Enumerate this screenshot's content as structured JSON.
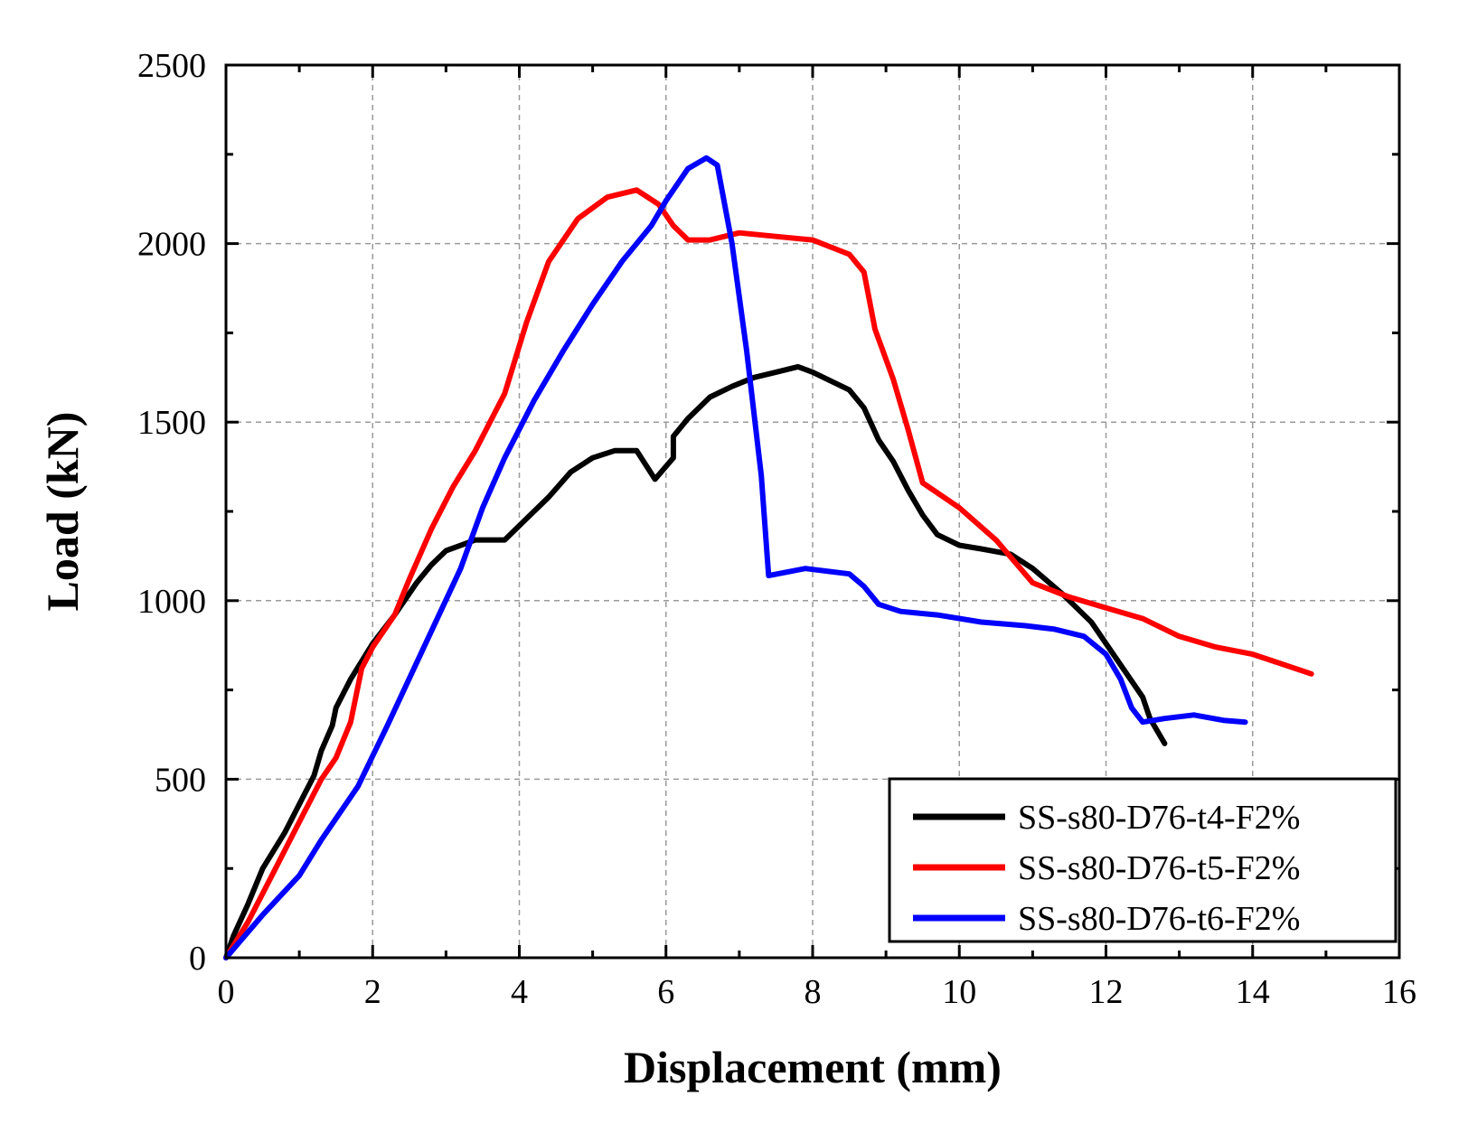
{
  "chart_data": {
    "type": "line",
    "title": "",
    "xlabel": "Displacement (mm)",
    "ylabel": "Load (kN)",
    "xlim": [
      0,
      16
    ],
    "ylim": [
      0,
      2500
    ],
    "xticks": [
      0,
      2,
      4,
      6,
      8,
      10,
      12,
      14,
      16
    ],
    "yticks": [
      0,
      500,
      1000,
      1500,
      2000,
      2500
    ],
    "grid": true,
    "legend_position": "bottom-right",
    "series": [
      {
        "name": "SS-s80-D76-t4-F2%",
        "color": "#000000",
        "points": [
          [
            0,
            0
          ],
          [
            0.1,
            60
          ],
          [
            0.3,
            150
          ],
          [
            0.5,
            250
          ],
          [
            0.8,
            350
          ],
          [
            1.0,
            430
          ],
          [
            1.2,
            510
          ],
          [
            1.3,
            580
          ],
          [
            1.45,
            650
          ],
          [
            1.5,
            700
          ],
          [
            1.7,
            780
          ],
          [
            2.0,
            880
          ],
          [
            2.3,
            960
          ],
          [
            2.6,
            1050
          ],
          [
            2.8,
            1100
          ],
          [
            3.0,
            1140
          ],
          [
            3.4,
            1170
          ],
          [
            3.8,
            1170
          ],
          [
            4.1,
            1230
          ],
          [
            4.4,
            1290
          ],
          [
            4.7,
            1360
          ],
          [
            5.0,
            1400
          ],
          [
            5.3,
            1420
          ],
          [
            5.6,
            1420
          ],
          [
            5.85,
            1340
          ],
          [
            6.1,
            1400
          ],
          [
            6.1,
            1460
          ],
          [
            6.3,
            1510
          ],
          [
            6.6,
            1570
          ],
          [
            6.9,
            1600
          ],
          [
            7.2,
            1625
          ],
          [
            7.5,
            1640
          ],
          [
            7.8,
            1655
          ],
          [
            8.0,
            1640
          ],
          [
            8.3,
            1610
          ],
          [
            8.5,
            1590
          ],
          [
            8.7,
            1540
          ],
          [
            8.9,
            1450
          ],
          [
            9.1,
            1390
          ],
          [
            9.3,
            1310
          ],
          [
            9.5,
            1240
          ],
          [
            9.7,
            1185
          ],
          [
            10.0,
            1155
          ],
          [
            10.3,
            1145
          ],
          [
            10.7,
            1130
          ],
          [
            11.0,
            1090
          ],
          [
            11.4,
            1020
          ],
          [
            11.8,
            940
          ],
          [
            12.1,
            850
          ],
          [
            12.5,
            730
          ],
          [
            12.6,
            670
          ],
          [
            12.8,
            600
          ]
        ]
      },
      {
        "name": "SS-s80-D76-t5-F2%",
        "color": "#ff0000",
        "points": [
          [
            0,
            0
          ],
          [
            0.3,
            100
          ],
          [
            0.6,
            220
          ],
          [
            0.8,
            300
          ],
          [
            1.0,
            380
          ],
          [
            1.3,
            500
          ],
          [
            1.5,
            560
          ],
          [
            1.7,
            660
          ],
          [
            1.85,
            810
          ],
          [
            2.0,
            870
          ],
          [
            2.3,
            960
          ],
          [
            2.5,
            1060
          ],
          [
            2.8,
            1200
          ],
          [
            3.1,
            1320
          ],
          [
            3.4,
            1420
          ],
          [
            3.8,
            1580
          ],
          [
            4.1,
            1780
          ],
          [
            4.4,
            1950
          ],
          [
            4.8,
            2070
          ],
          [
            5.2,
            2130
          ],
          [
            5.6,
            2150
          ],
          [
            5.9,
            2110
          ],
          [
            6.1,
            2050
          ],
          [
            6.3,
            2010
          ],
          [
            6.6,
            2010
          ],
          [
            7.0,
            2030
          ],
          [
            7.5,
            2020
          ],
          [
            8.0,
            2010
          ],
          [
            8.5,
            1970
          ],
          [
            8.7,
            1920
          ],
          [
            8.85,
            1760
          ],
          [
            9.1,
            1620
          ],
          [
            9.3,
            1480
          ],
          [
            9.5,
            1330
          ],
          [
            10.0,
            1260
          ],
          [
            10.5,
            1170
          ],
          [
            11.0,
            1050
          ],
          [
            11.5,
            1010
          ],
          [
            12.0,
            980
          ],
          [
            12.5,
            950
          ],
          [
            13.0,
            900
          ],
          [
            13.5,
            870
          ],
          [
            14.0,
            850
          ],
          [
            14.8,
            795
          ]
        ]
      },
      {
        "name": "SS-s80-D76-t6-F2%",
        "color": "#0000ff",
        "points": [
          [
            0,
            0
          ],
          [
            0.5,
            120
          ],
          [
            1.0,
            230
          ],
          [
            1.3,
            330
          ],
          [
            1.8,
            480
          ],
          [
            2.2,
            650
          ],
          [
            2.7,
            870
          ],
          [
            3.2,
            1090
          ],
          [
            3.5,
            1260
          ],
          [
            3.8,
            1400
          ],
          [
            4.2,
            1560
          ],
          [
            4.6,
            1700
          ],
          [
            5.0,
            1830
          ],
          [
            5.4,
            1950
          ],
          [
            5.8,
            2050
          ],
          [
            6.0,
            2120
          ],
          [
            6.3,
            2210
          ],
          [
            6.55,
            2240
          ],
          [
            6.7,
            2220
          ],
          [
            6.9,
            2000
          ],
          [
            7.1,
            1700
          ],
          [
            7.3,
            1350
          ],
          [
            7.4,
            1070
          ],
          [
            7.9,
            1090
          ],
          [
            8.5,
            1075
          ],
          [
            8.7,
            1040
          ],
          [
            8.9,
            990
          ],
          [
            9.2,
            970
          ],
          [
            9.7,
            960
          ],
          [
            10.3,
            940
          ],
          [
            10.9,
            930
          ],
          [
            11.3,
            920
          ],
          [
            11.7,
            900
          ],
          [
            12.0,
            850
          ],
          [
            12.2,
            780
          ],
          [
            12.35,
            700
          ],
          [
            12.5,
            660
          ],
          [
            12.8,
            670
          ],
          [
            13.2,
            680
          ],
          [
            13.6,
            665
          ],
          [
            13.9,
            660
          ]
        ]
      }
    ]
  }
}
